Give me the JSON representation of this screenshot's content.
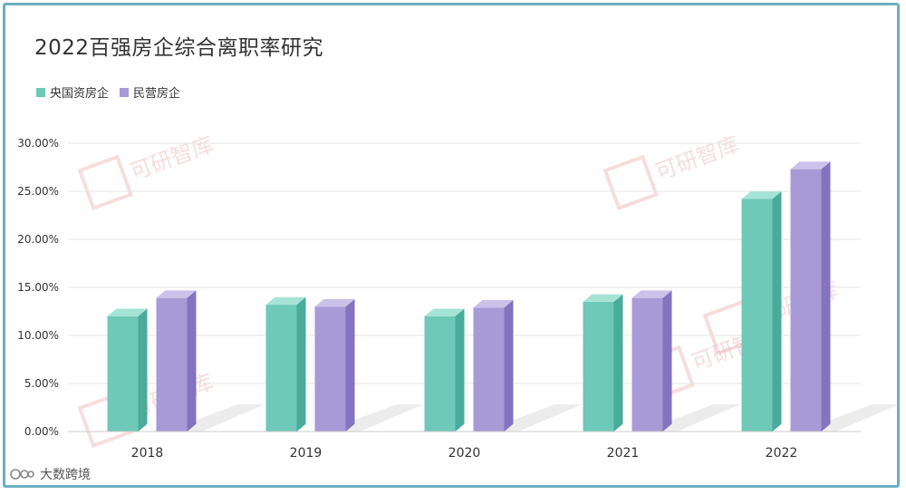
{
  "colors": {
    "series1": "#6ec9b8",
    "series1_side": "#4aab9a",
    "series1_top": "#a6e3d7",
    "series2": "#a89ad6",
    "series2_side": "#8473bd",
    "series2_top": "#cbc2eb",
    "grid": "#e6e6e6",
    "frame": "#6ab0c2",
    "watermark": "#e8a0a0"
  },
  "watermark": {
    "text": "可研智库",
    "logo": "ko-logo"
  },
  "footer": {
    "brand": "大数跨境"
  },
  "chart_data": {
    "type": "bar",
    "title": "2022百强房企综合离职率研究",
    "xlabel": "",
    "ylabel": "",
    "categories": [
      "2018",
      "2019",
      "2020",
      "2021",
      "2022"
    ],
    "series": [
      {
        "name": "央国资房企",
        "values": [
          12.0,
          13.2,
          12.0,
          13.5,
          24.2
        ]
      },
      {
        "name": "民营房企",
        "values": [
          13.9,
          13.0,
          12.9,
          13.9,
          27.3
        ]
      }
    ],
    "ylim": [
      0,
      30
    ],
    "yticks": [
      "0.00%",
      "5.00%",
      "10.00%",
      "15.00%",
      "20.00%",
      "25.00%",
      "30.00%"
    ],
    "grid": true,
    "legend_position": "top-left"
  }
}
